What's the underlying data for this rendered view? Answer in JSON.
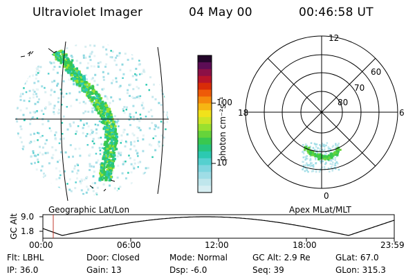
{
  "header": {
    "instrument": "Ultraviolet Imager",
    "date": "04 May 00",
    "time": "00:46:58 UT"
  },
  "geo_panel": {
    "caption": "Geographic Lat/Lon"
  },
  "polar_panel": {
    "caption": "Apex MLat/MLT",
    "mlt_labels": {
      "top": "12",
      "left": "18",
      "right": "6",
      "bottom": "0"
    },
    "lat_labels": [
      "60",
      "70",
      "80"
    ]
  },
  "colorbar": {
    "unit_label": "photon cm⁻²s⁻¹",
    "ticks": [
      "100",
      "10"
    ],
    "colors": [
      "#d6eef2",
      "#bfe6ec",
      "#9fdde6",
      "#7fd6df",
      "#55d0cf",
      "#2cc9b1",
      "#27c57e",
      "#39c84f",
      "#66d43a",
      "#9ae02f",
      "#cde527",
      "#f1e21b",
      "#f6b613",
      "#f58a0c",
      "#ee5a08",
      "#d92c08",
      "#b8142a",
      "#8c1046",
      "#5c0d55",
      "#24062a"
    ]
  },
  "altitude_plot": {
    "ylabel": "GC Alt",
    "yticks": [
      "9.0",
      "1.8"
    ],
    "xticks": [
      "00:00",
      "06:00",
      "12:00",
      "18:00",
      "23:59"
    ]
  },
  "status": {
    "rows": [
      [
        "Flt: LBHL",
        "Door: Closed",
        "Mode: Normal",
        "GC Alt: 2.9 Re",
        "GLat:  67.0"
      ],
      [
        "IP: 36.0",
        "Gain: 13",
        "Dsp:    -6.0",
        "Seq: 39",
        "GLon: 315.3"
      ]
    ]
  }
}
